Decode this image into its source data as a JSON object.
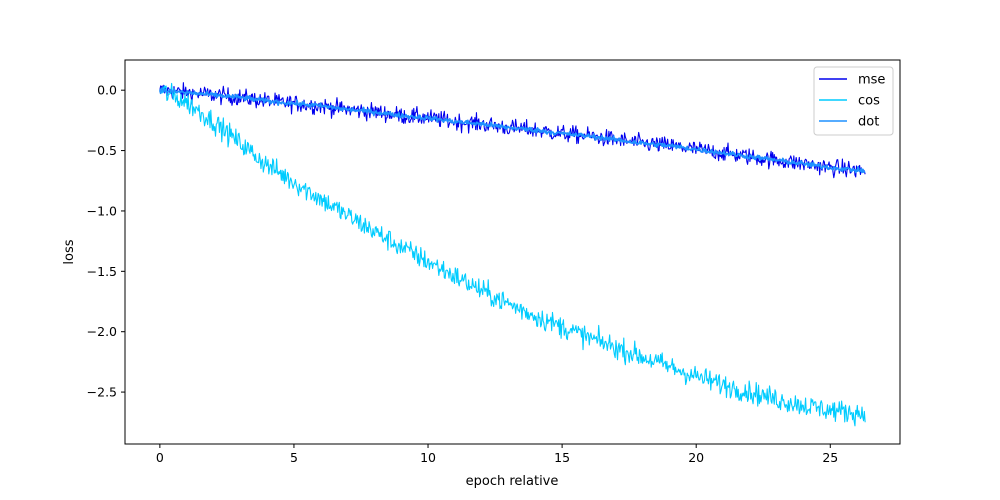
{
  "chart_data": {
    "type": "line",
    "title": "",
    "xlabel": "epoch relative",
    "ylabel": "loss",
    "xlim": [
      -1.3,
      27.6
    ],
    "ylim": [
      -2.93,
      0.25
    ],
    "xticks": [
      0,
      5,
      10,
      15,
      20,
      25
    ],
    "yticks": [
      0.0,
      -0.5,
      -1.0,
      -1.5,
      -2.0,
      -2.5
    ],
    "xtick_labels": [
      "0",
      "5",
      "10",
      "15",
      "20",
      "25"
    ],
    "ytick_labels": [
      "0.0",
      "−0.5",
      "−1.0",
      "−1.5",
      "−2.0",
      "−2.5"
    ],
    "grid": false,
    "legend_position": "top-right",
    "series": [
      {
        "name": "mse",
        "color": "#0000ee",
        "x": [
          0,
          1,
          2,
          3,
          4,
          5,
          6,
          7,
          8,
          9,
          10,
          11,
          12,
          13,
          14,
          15,
          16,
          17,
          18,
          19,
          20,
          21,
          22,
          23,
          24,
          25,
          26.3
        ],
        "y": [
          0.0,
          -0.02,
          -0.04,
          -0.06,
          -0.09,
          -0.11,
          -0.13,
          -0.16,
          -0.18,
          -0.21,
          -0.23,
          -0.26,
          -0.28,
          -0.31,
          -0.33,
          -0.36,
          -0.38,
          -0.41,
          -0.44,
          -0.46,
          -0.49,
          -0.52,
          -0.55,
          -0.58,
          -0.61,
          -0.64,
          -0.67
        ],
        "noise": 0.035
      },
      {
        "name": "cos",
        "color": "#00ccff",
        "x": [
          0,
          1,
          2,
          3,
          4,
          5,
          6,
          7,
          8,
          9,
          10,
          11,
          12,
          13,
          14,
          15,
          16,
          17,
          18,
          19,
          20,
          21,
          22,
          23,
          24,
          25,
          26.3
        ],
        "y": [
          0.0,
          -0.1,
          -0.26,
          -0.44,
          -0.62,
          -0.76,
          -0.9,
          -1.04,
          -1.17,
          -1.3,
          -1.42,
          -1.54,
          -1.66,
          -1.77,
          -1.87,
          -1.96,
          -2.05,
          -2.13,
          -2.21,
          -2.29,
          -2.37,
          -2.44,
          -2.5,
          -2.56,
          -2.61,
          -2.65,
          -2.68
        ],
        "noise": 0.045
      },
      {
        "name": "dot",
        "color": "#1e90ff",
        "x": [
          0,
          1,
          2,
          3,
          4,
          5,
          6,
          7,
          8,
          9,
          10,
          11,
          12,
          13,
          14,
          15,
          16,
          17,
          18,
          19,
          20,
          21,
          22,
          23,
          24,
          25,
          26.3
        ],
        "y": [
          0.0,
          -0.02,
          -0.04,
          -0.06,
          -0.09,
          -0.11,
          -0.13,
          -0.16,
          -0.18,
          -0.21,
          -0.23,
          -0.26,
          -0.28,
          -0.31,
          -0.33,
          -0.36,
          -0.38,
          -0.41,
          -0.44,
          -0.46,
          -0.49,
          -0.52,
          -0.55,
          -0.58,
          -0.61,
          -0.64,
          -0.67
        ],
        "noise": 0.01
      }
    ]
  }
}
